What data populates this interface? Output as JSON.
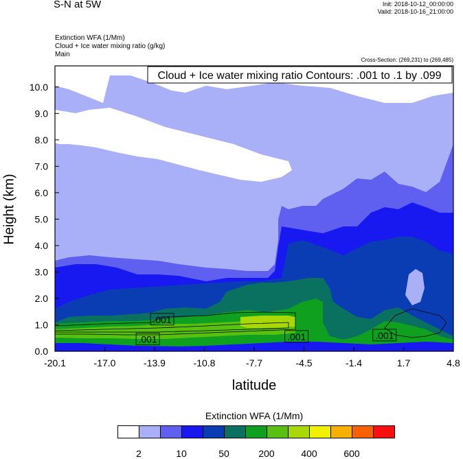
{
  "header": {
    "title": "S-N at 5W",
    "init": "Init: 2018-10-12_00:00:00",
    "valid": "Valid: 2018-10-16_21:00:00",
    "field1": "Extinction WFA   (1/Mm)",
    "field2": "Cloud + Ice water mixing ratio   (g/kg)",
    "field3": "Main",
    "cross_section": "Cross-Section: (269,231) to (269,485)"
  },
  "chart_data": {
    "type": "filled-contour",
    "title": "",
    "xlabel": "latitude",
    "ylabel": "Height (km)",
    "xlim": [
      -20.1,
      4.8
    ],
    "ylim": [
      0.0,
      10.8
    ],
    "x_ticks": [
      "-20.1",
      "-17.0",
      "-13.9",
      "-10.8",
      "-7.7",
      "-4.5",
      "-1.4",
      "1.7",
      "4.8"
    ],
    "y_ticks": [
      "0.0",
      "1.0",
      "2.0",
      "3.0",
      "4.0",
      "5.0",
      "6.0",
      "7.0",
      "8.0",
      "9.0",
      "10.0"
    ],
    "contour_info": "Cloud + Ice water mixing ratio Contours: .001 to .1 by .099",
    "contour_labels": [
      {
        "x": -13.4,
        "y": 1.2,
        "text": ".001"
      },
      {
        "x": -14.3,
        "y": 0.45,
        "text": ".001"
      },
      {
        "x": -5.0,
        "y": 0.55,
        "text": ".001"
      },
      {
        "x": 0.5,
        "y": 0.6,
        "text": ".001"
      }
    ],
    "colorbar": {
      "title": "Extinction WFA  (1/Mm)",
      "colors": [
        "#ffffff",
        "#aab0f8",
        "#6060f0",
        "#1818f0",
        "#0a3cb4",
        "#0a7060",
        "#10a020",
        "#58c010",
        "#a8d808",
        "#f0f000",
        "#f8b000",
        "#f86000",
        "#f81010"
      ],
      "labels": [
        "2",
        "10",
        "50",
        "200",
        "400",
        "600"
      ]
    }
  }
}
